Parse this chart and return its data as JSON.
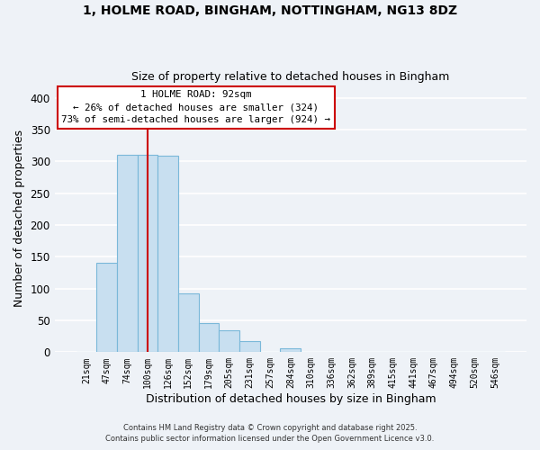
{
  "title1": "1, HOLME ROAD, BINGHAM, NOTTINGHAM, NG13 8DZ",
  "title2": "Size of property relative to detached houses in Bingham",
  "xlabel": "Distribution of detached houses by size in Bingham",
  "ylabel": "Number of detached properties",
  "bar_color": "#c8dff0",
  "bar_edge_color": "#7ab8d9",
  "background_color": "#eef2f7",
  "grid_color": "white",
  "categories": [
    "21sqm",
    "47sqm",
    "74sqm",
    "100sqm",
    "126sqm",
    "152sqm",
    "179sqm",
    "205sqm",
    "231sqm",
    "257sqm",
    "284sqm",
    "310sqm",
    "336sqm",
    "362sqm",
    "389sqm",
    "415sqm",
    "441sqm",
    "467sqm",
    "494sqm",
    "520sqm",
    "546sqm"
  ],
  "values": [
    0,
    140,
    311,
    311,
    309,
    93,
    46,
    35,
    17,
    0,
    6,
    0,
    0,
    0,
    0,
    0,
    0,
    0,
    0,
    0,
    0
  ],
  "ylim": [
    0,
    420
  ],
  "yticks": [
    0,
    50,
    100,
    150,
    200,
    250,
    300,
    350,
    400
  ],
  "vline_x": 3,
  "annotation_title": "1 HOLME ROAD: 92sqm",
  "annotation_line1": "← 26% of detached houses are smaller (324)",
  "annotation_line2": "73% of semi-detached houses are larger (924) →",
  "annotation_box_color": "white",
  "annotation_box_edge": "#cc0000",
  "vline_color": "#cc0000",
  "footer1": "Contains HM Land Registry data © Crown copyright and database right 2025.",
  "footer2": "Contains public sector information licensed under the Open Government Licence v3.0."
}
